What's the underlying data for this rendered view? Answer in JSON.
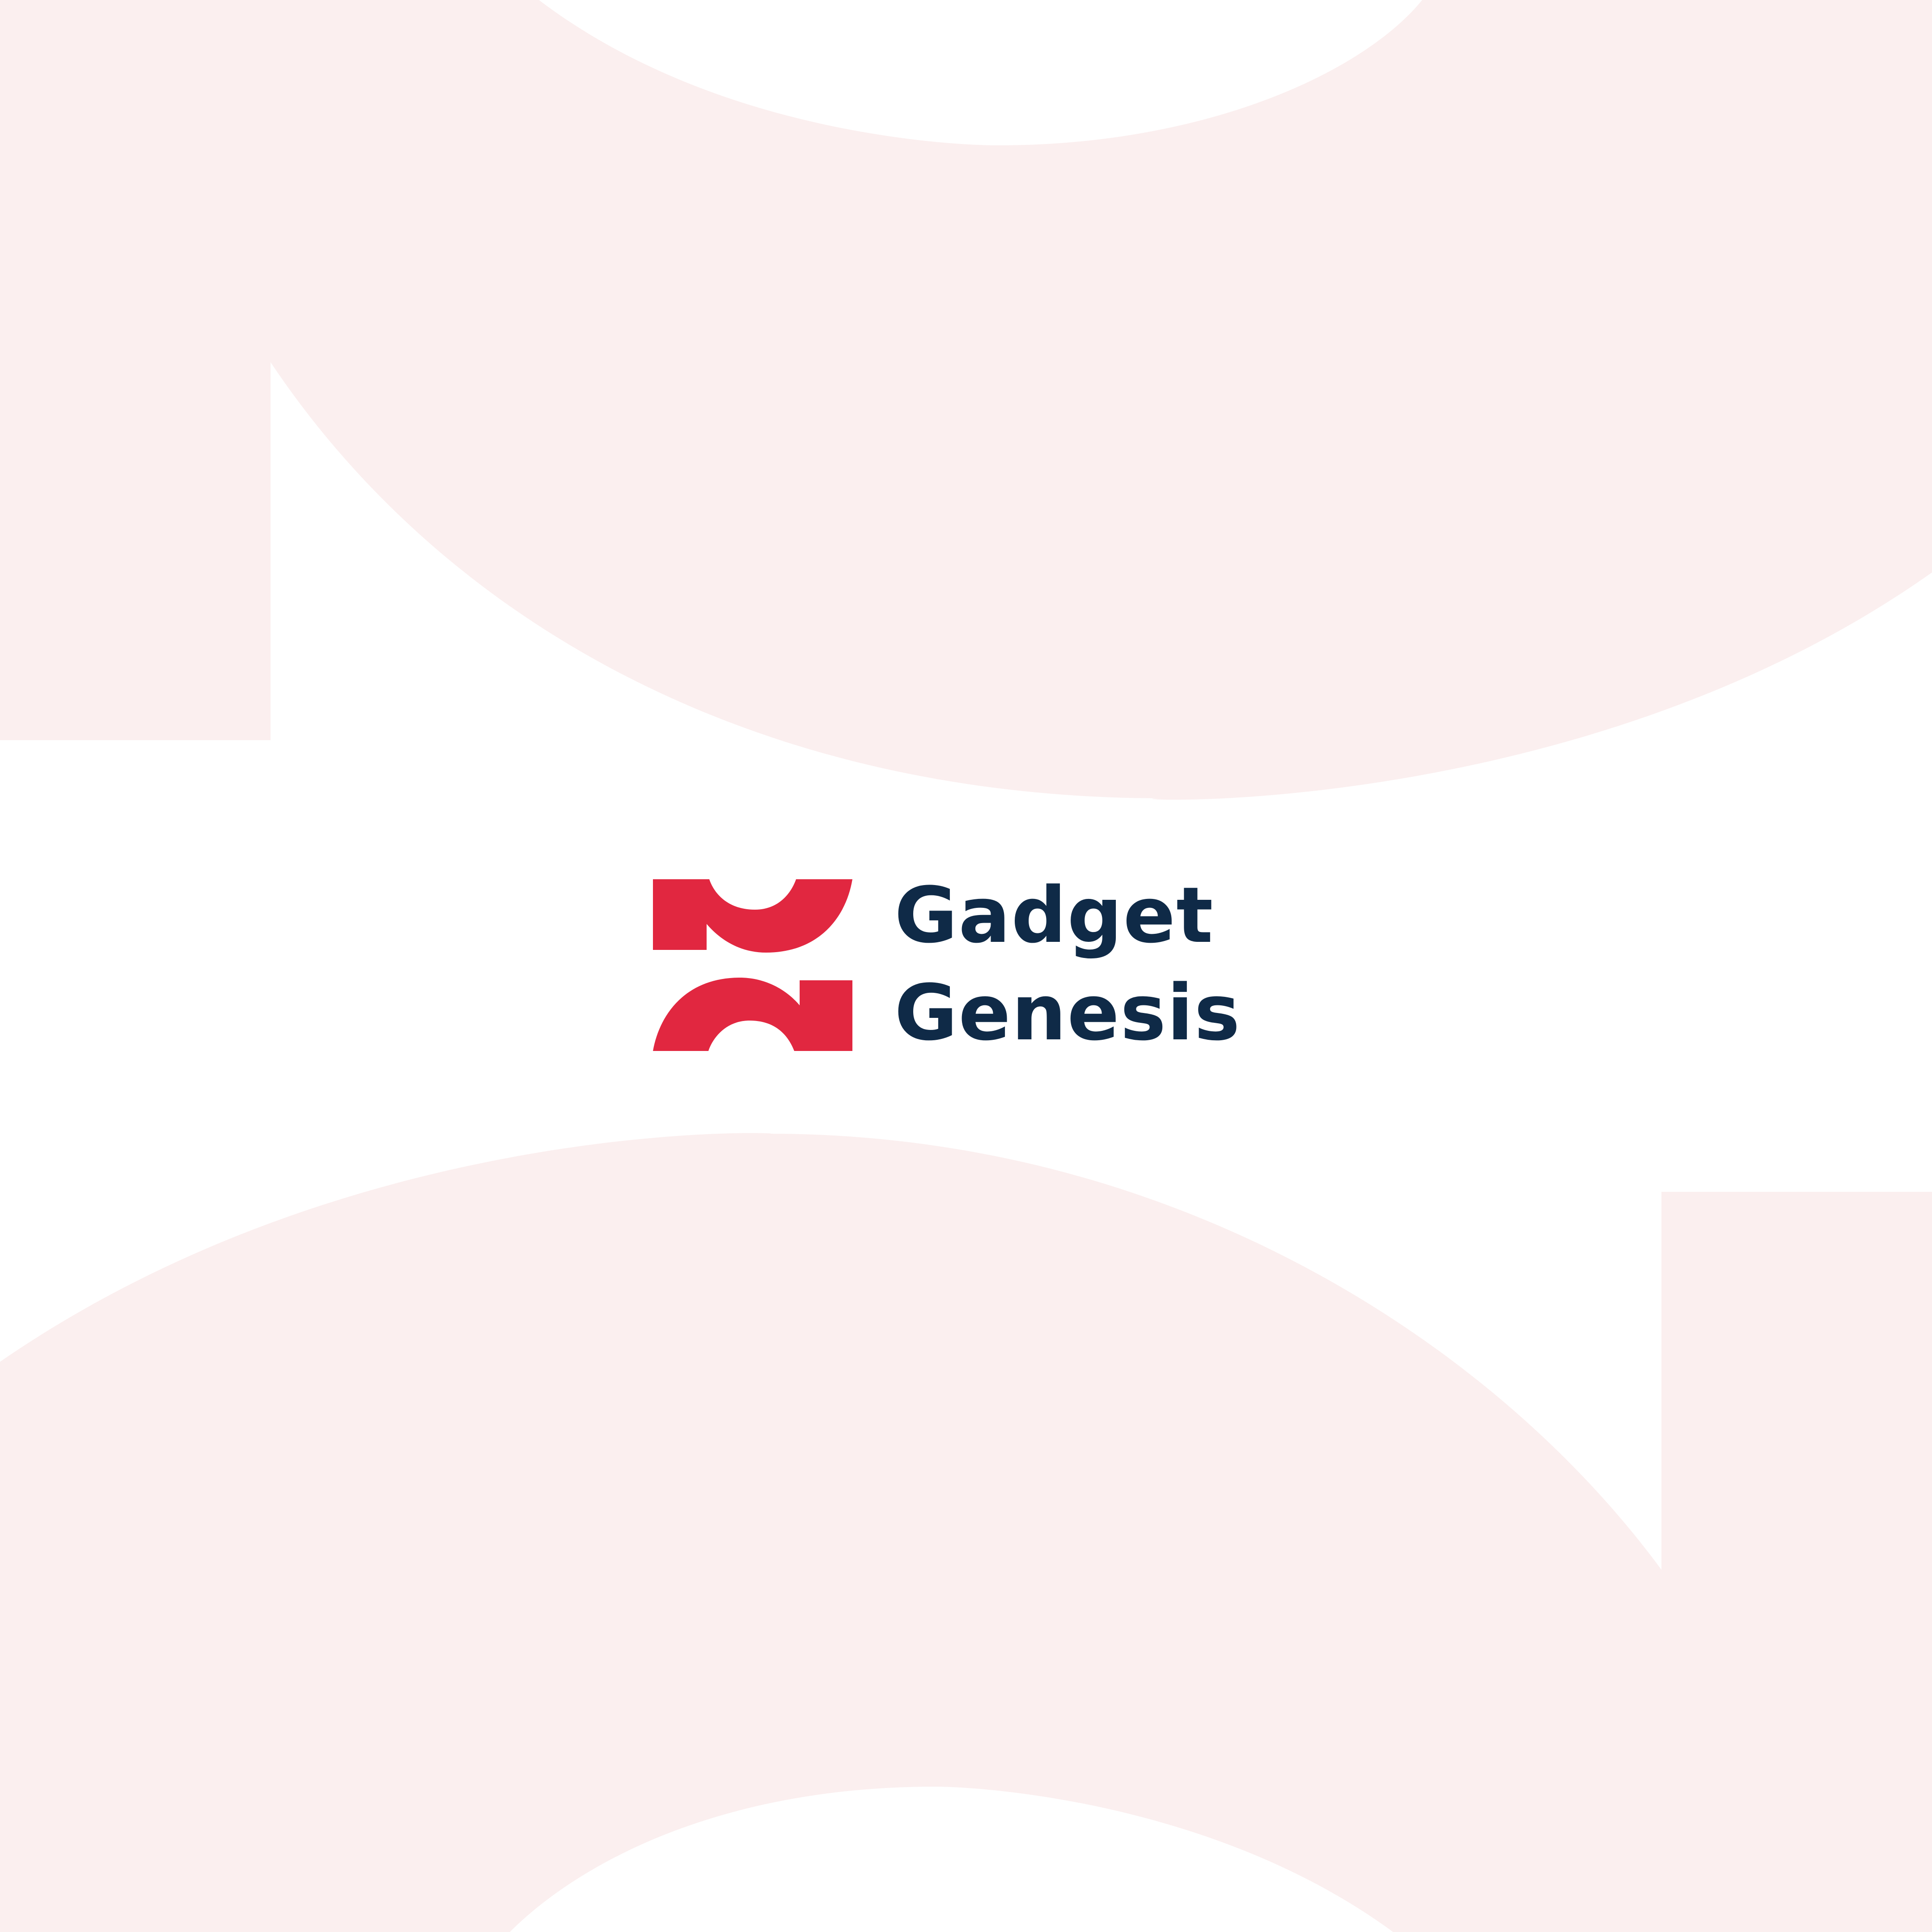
{
  "brand": {
    "line1": "Gadget",
    "line2": "Genesis"
  },
  "colors": {
    "background": "#ffffff",
    "shape_tint": "#fbefef",
    "accent_red": "#e12740",
    "text_navy": "#0f2a47"
  },
  "icons": {
    "logo_mark": "interlocking-red-arc-blocks-icon",
    "background": "large-pale-pink-arc-shapes"
  }
}
